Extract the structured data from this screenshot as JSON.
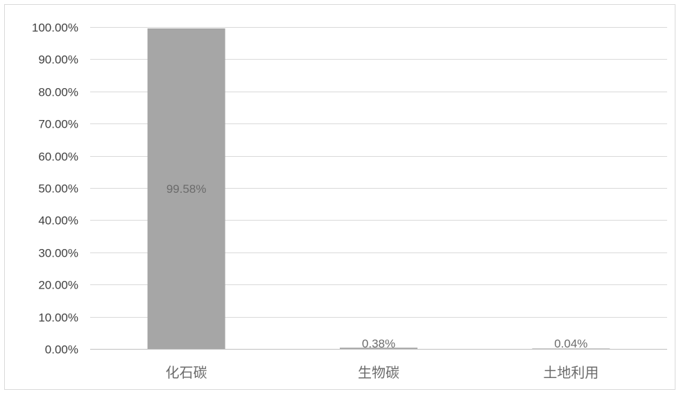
{
  "chart_data": {
    "type": "bar",
    "title": "",
    "xlabel": "",
    "ylabel": "",
    "categories": [
      "化石碳",
      "生物碳",
      "土地利用"
    ],
    "values": [
      99.58,
      0.38,
      0.04
    ],
    "data_labels": [
      "99.58%",
      "0.38%",
      "0.04%"
    ],
    "ylim": [
      0,
      100
    ],
    "yticks": [
      0,
      10,
      20,
      30,
      40,
      50,
      60,
      70,
      80,
      90,
      100
    ],
    "ytick_labels": [
      "0.00%",
      "10.00%",
      "20.00%",
      "30.00%",
      "40.00%",
      "50.00%",
      "60.00%",
      "70.00%",
      "80.00%",
      "90.00%",
      "100.00%"
    ],
    "grid": true,
    "legend": "none",
    "bar_color": "#a6a6a6"
  }
}
